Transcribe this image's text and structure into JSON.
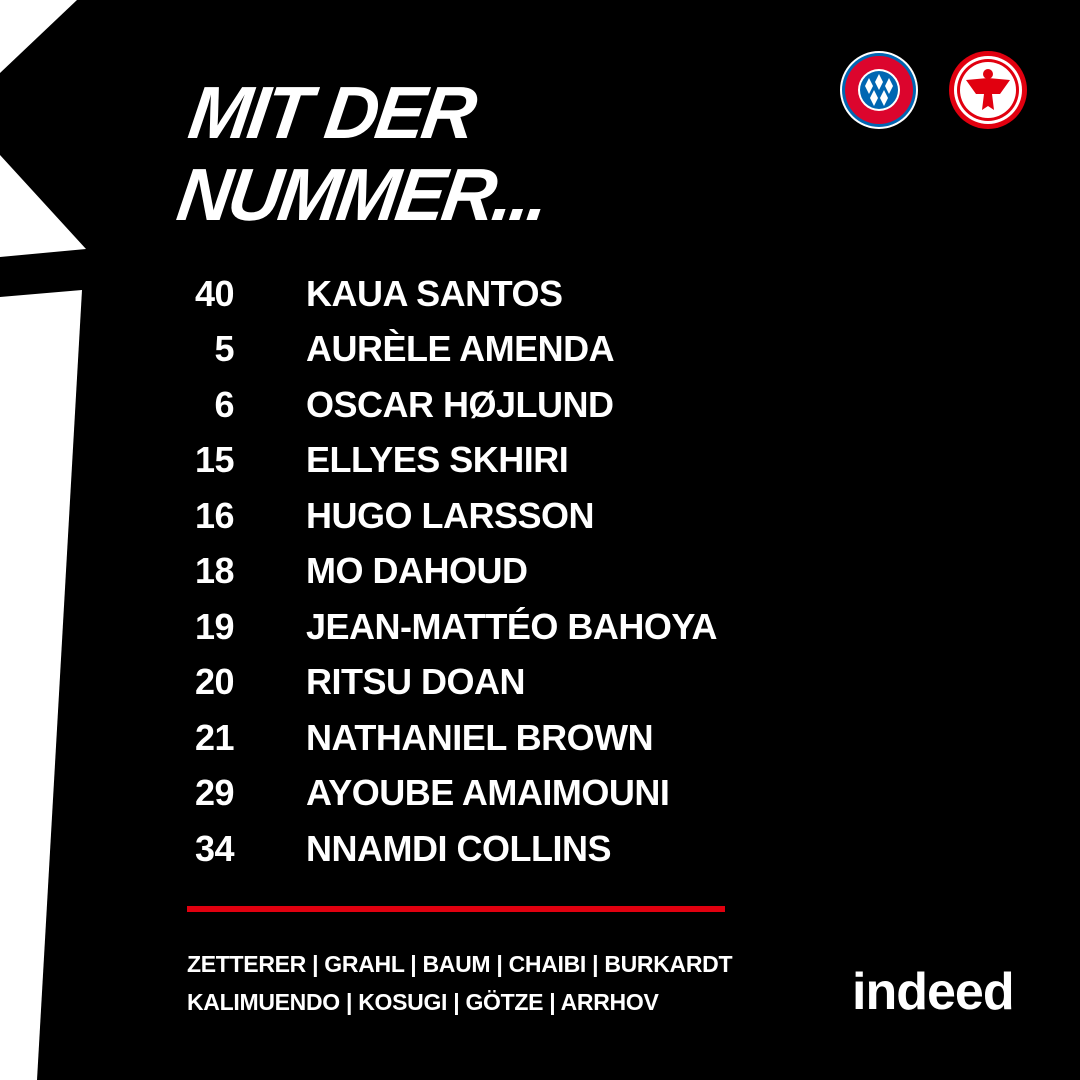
{
  "title": {
    "line1": "MIT DER",
    "line2": "NUMMER..."
  },
  "logos": {
    "home": "FC Bayern München",
    "away": "Eintracht Frankfurt",
    "home_text": "FC BAYERN MÜNCHEN"
  },
  "roster": [
    {
      "number": "40",
      "name": "Kaua Santos"
    },
    {
      "number": "5",
      "name": "Aurèle Amenda"
    },
    {
      "number": "6",
      "name": "Oscar Højlund"
    },
    {
      "number": "15",
      "name": "Ellyes Skhiri"
    },
    {
      "number": "16",
      "name": "Hugo Larsson"
    },
    {
      "number": "18",
      "name": "Mo Dahoud"
    },
    {
      "number": "19",
      "name": "Jean-Mattéo Bahoya"
    },
    {
      "number": "20",
      "name": "Ritsu Doan"
    },
    {
      "number": "21",
      "name": "Nathaniel Brown"
    },
    {
      "number": "29",
      "name": "Ayoube Amaimouni"
    },
    {
      "number": "34",
      "name": "Nnamdi Collins"
    }
  ],
  "substitutes": {
    "line1": "ZETTERER | GRAHL | BAUM | CHAIBI | BURKARDT",
    "line2": "KALIMUENDO | KOSUGI | GÖTZE | ARRHOV"
  },
  "sponsor": "indeed",
  "colors": {
    "background": "#000000",
    "accent": "#e1000f",
    "text": "#ffffff"
  }
}
